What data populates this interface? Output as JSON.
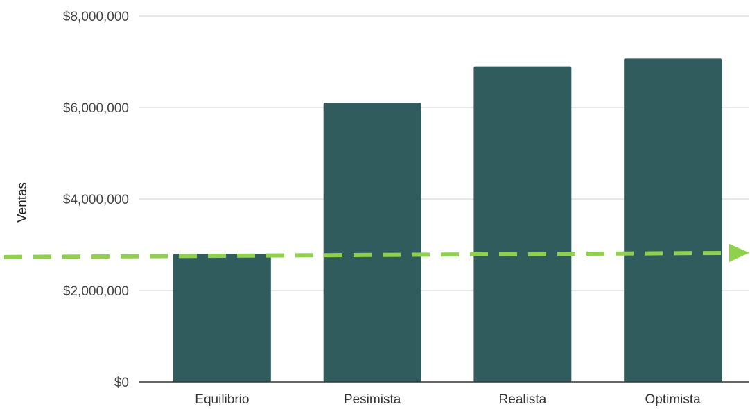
{
  "chart_data": {
    "type": "bar",
    "title": "",
    "xlabel": "",
    "ylabel": "Ventas",
    "categories": [
      "Equilibrio",
      "Pesimista",
      "Realista",
      "Optimista"
    ],
    "values": [
      2800000,
      6100000,
      6900000,
      7070000
    ],
    "ylim": [
      0,
      8000000
    ],
    "yticks": [
      0,
      2000000,
      4000000,
      6000000,
      8000000
    ],
    "ytick_labels": [
      "$0",
      "$2,000,000",
      "$4,000,000",
      "$6,000,000",
      "$8,000,000"
    ],
    "grid": true,
    "legend": "none",
    "bar_color": "#305c5e",
    "annotation": {
      "type": "dashed-arrow",
      "color": "#8fd14f",
      "y_start": 2730000,
      "y_end": 2820000
    }
  }
}
